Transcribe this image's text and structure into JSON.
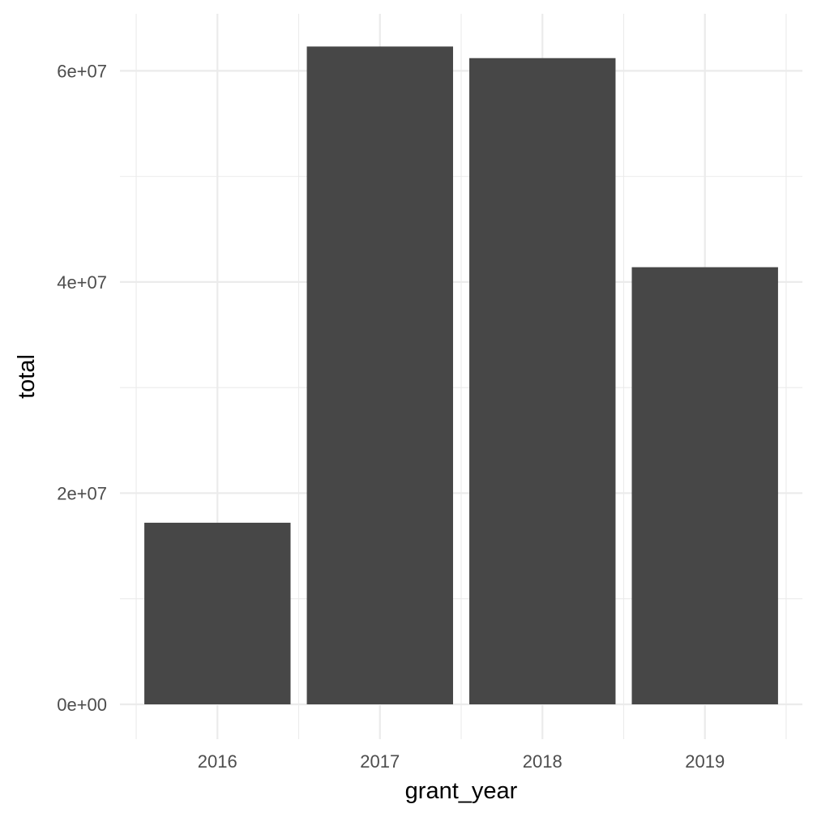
{
  "chart_data": {
    "type": "bar",
    "categories": [
      "2016",
      "2017",
      "2018",
      "2019"
    ],
    "values": [
      17200000,
      62300000,
      61200000,
      41400000
    ],
    "xlabel": "grant_year",
    "ylabel": "total",
    "ylim": [
      -3300000,
      65400000
    ],
    "yticks": [
      {
        "value": 0,
        "label": "0e+00"
      },
      {
        "value": 20000000,
        "label": "2e+07"
      },
      {
        "value": 40000000,
        "label": "4e+07"
      },
      {
        "value": 60000000,
        "label": "6e+07"
      }
    ],
    "yminor": [
      10000000,
      30000000,
      50000000
    ],
    "bar_color": "#474747",
    "grid": true,
    "grid_color": "#ebebeb",
    "background": "#ffffff",
    "legend": "none"
  }
}
